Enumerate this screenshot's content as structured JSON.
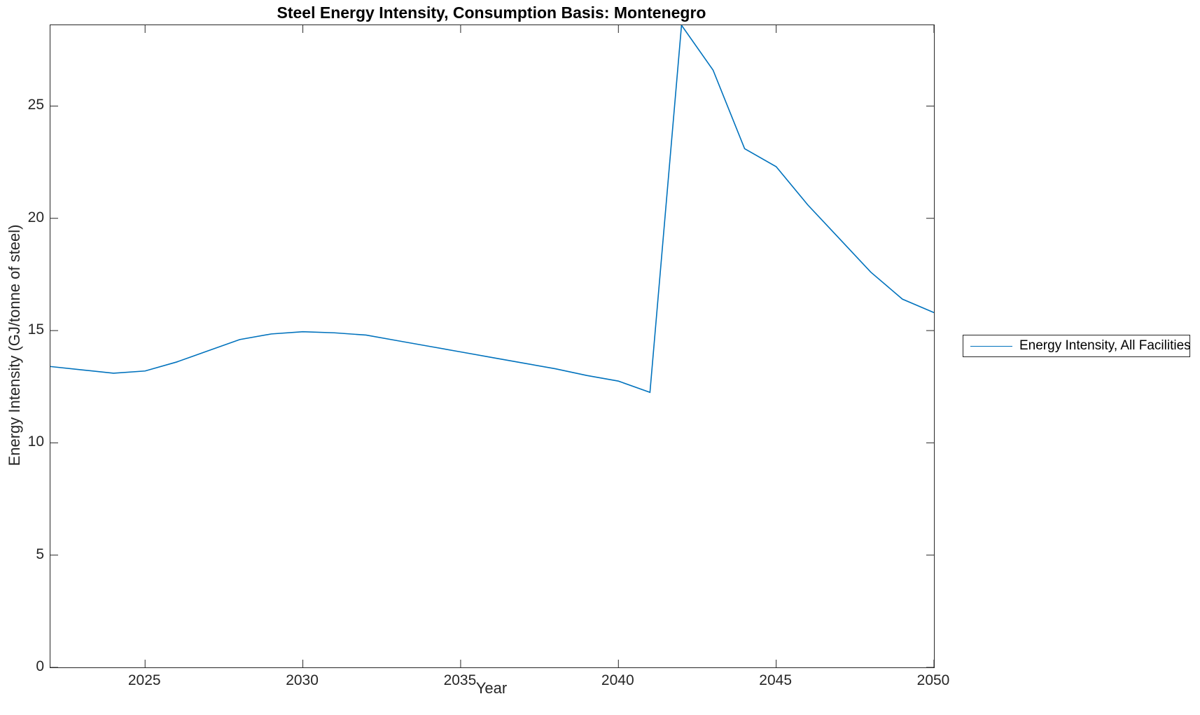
{
  "figure": {
    "title": "Steel Energy Intensity, Consumption Basis: Montenegro",
    "xlabel": "Year",
    "ylabel": "Energy Intensity (GJ/tonne of steel)"
  },
  "legend": {
    "entries": [
      {
        "label": "Energy Intensity, All Facilities",
        "color": "#0072BD"
      }
    ]
  },
  "colors": {
    "line": "#0072BD",
    "axis": "#262626",
    "background": "#ffffff"
  },
  "chart_data": {
    "type": "line",
    "title": "Steel Energy Intensity, Consumption Basis: Montenegro",
    "xlabel": "Year",
    "ylabel": "Energy Intensity (GJ/tonne of steel)",
    "x": [
      2022,
      2023,
      2024,
      2025,
      2026,
      2027,
      2028,
      2029,
      2030,
      2031,
      2032,
      2033,
      2034,
      2035,
      2036,
      2037,
      2038,
      2039,
      2040,
      2041,
      2042,
      2043,
      2044,
      2045,
      2046,
      2047,
      2048,
      2049,
      2050
    ],
    "series": [
      {
        "name": "Energy Intensity, All Facilities",
        "color": "#0072BD",
        "values": [
          13.4,
          13.25,
          13.1,
          13.2,
          13.6,
          14.1,
          14.6,
          14.85,
          14.95,
          14.9,
          14.8,
          14.55,
          14.3,
          14.05,
          13.8,
          13.55,
          13.3,
          13.0,
          12.75,
          12.25,
          28.6,
          26.6,
          23.1,
          22.3,
          20.6,
          19.1,
          17.6,
          16.4,
          15.8
        ]
      }
    ],
    "xlim": [
      2022,
      2050
    ],
    "ylim": [
      0,
      28.6
    ],
    "xticks": [
      2025,
      2030,
      2035,
      2040,
      2045,
      2050
    ],
    "yticks": [
      0,
      5,
      10,
      15,
      20,
      25
    ],
    "tick_length": 11,
    "line_width": 1.6,
    "grid": false,
    "legend_position": "right-outside"
  }
}
